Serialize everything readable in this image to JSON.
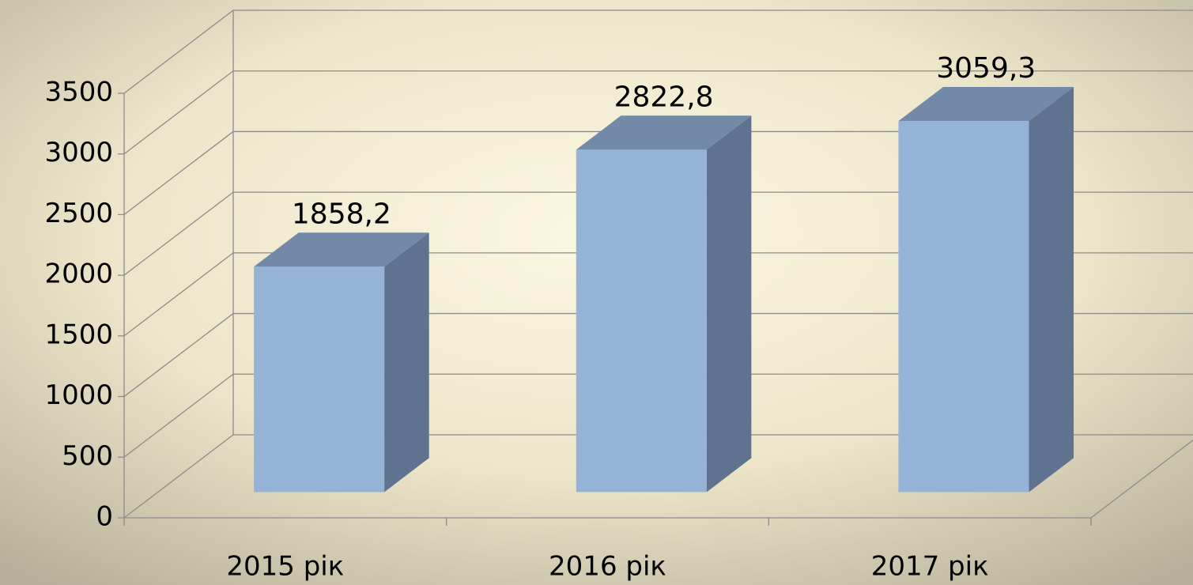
{
  "chart_data": {
    "type": "bar",
    "categories": [
      "2015 рік",
      "2016 рік",
      "2017 рік"
    ],
    "values": [
      1858.2,
      2822.8,
      3059.3
    ],
    "value_labels": [
      "1858,2",
      "2822,8",
      "3059,3"
    ],
    "color": "#95b3d7",
    "ylim": [
      0,
      3500
    ],
    "yticks": [
      0,
      500,
      1000,
      1500,
      2000,
      2500,
      3000,
      3500
    ],
    "grid": true
  }
}
